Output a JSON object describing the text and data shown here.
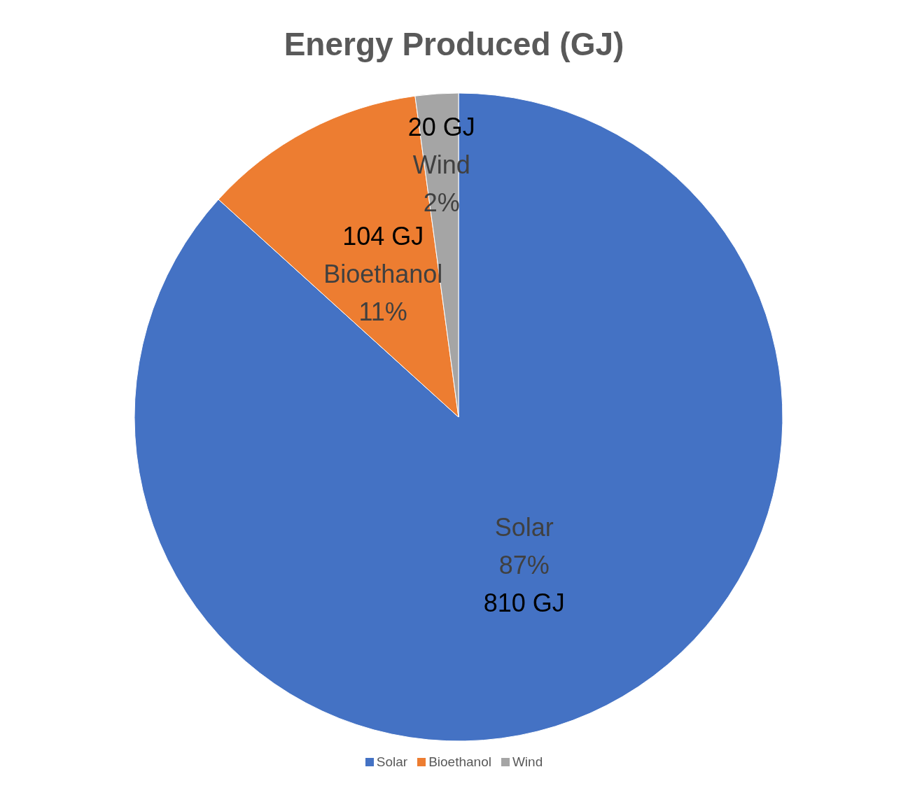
{
  "chart_data": {
    "type": "pie",
    "title": "Energy Produced (GJ)",
    "categories": [
      "Solar",
      "Bioethanol",
      "Wind"
    ],
    "values": [
      810,
      104,
      20
    ],
    "colors": [
      "#4472c4",
      "#ed7d31",
      "#a5a5a5"
    ],
    "value_labels": [
      "810 GJ",
      "104 GJ",
      "20 GJ"
    ],
    "annotations": [
      {
        "text": "87%",
        "x": "Solar"
      },
      {
        "text": "11%",
        "x": "Bioethanol"
      },
      {
        "text": "2%",
        "x": "Wind"
      }
    ],
    "legend": "bottom"
  }
}
